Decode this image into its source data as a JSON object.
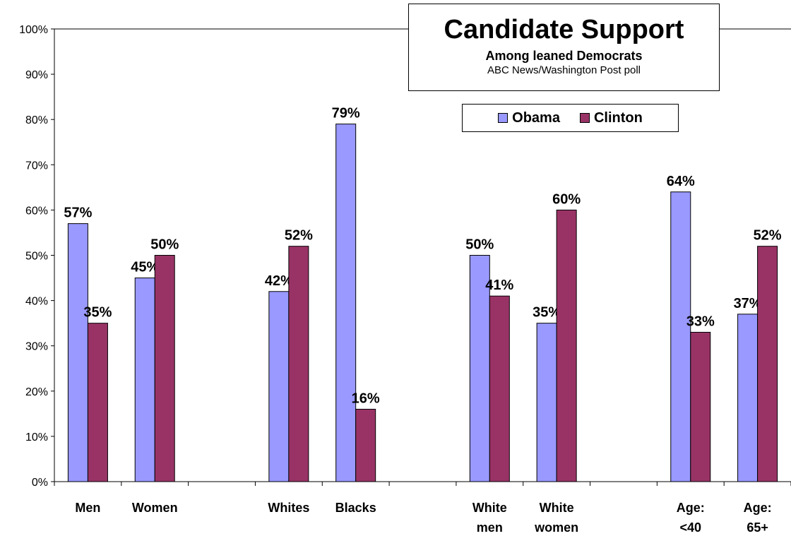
{
  "chart_data": {
    "type": "bar",
    "title": "Candidate Support",
    "subtitle": "Among leaned Democrats",
    "source": "ABC News/Washington Post poll",
    "xlabel": "",
    "ylabel": "",
    "ylim": [
      0,
      100
    ],
    "y_ticks": [
      "0%",
      "10%",
      "20%",
      "30%",
      "40%",
      "50%",
      "60%",
      "70%",
      "80%",
      "90%",
      "100%"
    ],
    "categories": [
      "Men",
      "Women",
      "",
      "Whites",
      "Blacks",
      "",
      "White men",
      "White women",
      "",
      "Age: <40",
      "Age: 65+"
    ],
    "category_lines": [
      [
        "Men"
      ],
      [
        "Women"
      ],
      [],
      [
        "Whites"
      ],
      [
        "Blacks"
      ],
      [],
      [
        "White",
        "men"
      ],
      [
        "White",
        "women"
      ],
      [],
      [
        "Age:",
        "<40"
      ],
      [
        "Age:",
        "65+"
      ]
    ],
    "series": [
      {
        "name": "Obama",
        "color": "#9999ff",
        "values": [
          57,
          45,
          null,
          42,
          79,
          null,
          50,
          35,
          null,
          64,
          37
        ],
        "labels": [
          "57%",
          "45%",
          "",
          "42%",
          "79%",
          "",
          "50%",
          "35%",
          "",
          "64%",
          "37%"
        ]
      },
      {
        "name": "Clinton",
        "color": "#993366",
        "values": [
          35,
          50,
          null,
          52,
          16,
          null,
          41,
          60,
          null,
          33,
          52
        ],
        "labels": [
          "35%",
          "50%",
          "",
          "52%",
          "16%",
          "",
          "41%",
          "60%",
          "",
          "33%",
          "52%"
        ]
      }
    ],
    "grid": false,
    "legend_position": "top-right"
  }
}
